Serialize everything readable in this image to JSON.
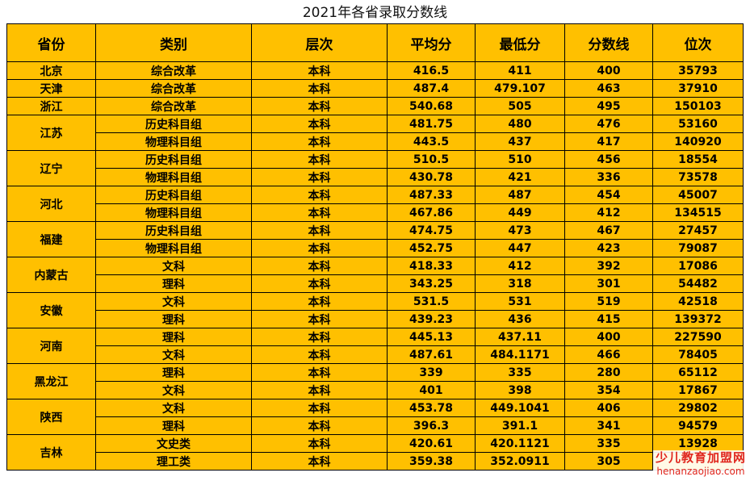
{
  "title": "2021年各省录取分数线",
  "columns": [
    "省份",
    "类别",
    "层次",
    "平均分",
    "最低分",
    "分数线",
    "位次"
  ],
  "provinces": [
    {
      "name": "北京",
      "rows": [
        {
          "category": "综合改革",
          "level": "本科",
          "avg": "416.5",
          "min": "411",
          "line": "400",
          "rank": "35793"
        }
      ]
    },
    {
      "name": "天津",
      "rows": [
        {
          "category": "综合改革",
          "level": "本科",
          "avg": "487.4",
          "min": "479.107",
          "line": "463",
          "rank": "37910"
        }
      ]
    },
    {
      "name": "浙江",
      "rows": [
        {
          "category": "综合改革",
          "level": "本科",
          "avg": "540.68",
          "min": "505",
          "line": "495",
          "rank": "150103"
        }
      ]
    },
    {
      "name": "江苏",
      "rows": [
        {
          "category": "历史科目组",
          "level": "本科",
          "avg": "481.75",
          "min": "480",
          "line": "476",
          "rank": "53160"
        },
        {
          "category": "物理科目组",
          "level": "本科",
          "avg": "443.5",
          "min": "437",
          "line": "417",
          "rank": "140920"
        }
      ]
    },
    {
      "name": "辽宁",
      "rows": [
        {
          "category": "历史科目组",
          "level": "本科",
          "avg": "510.5",
          "min": "510",
          "line": "456",
          "rank": "18554"
        },
        {
          "category": "物理科目组",
          "level": "本科",
          "avg": "430.78",
          "min": "421",
          "line": "336",
          "rank": "73578"
        }
      ]
    },
    {
      "name": "河北",
      "rows": [
        {
          "category": "历史科目组",
          "level": "本科",
          "avg": "487.33",
          "min": "487",
          "line": "454",
          "rank": "45007"
        },
        {
          "category": "物理科目组",
          "level": "本科",
          "avg": "467.86",
          "min": "449",
          "line": "412",
          "rank": "134515"
        }
      ]
    },
    {
      "name": "福建",
      "rows": [
        {
          "category": "历史科目组",
          "level": "本科",
          "avg": "474.75",
          "min": "473",
          "line": "467",
          "rank": "27457"
        },
        {
          "category": "物理科目组",
          "level": "本科",
          "avg": "452.75",
          "min": "447",
          "line": "423",
          "rank": "79087"
        }
      ]
    },
    {
      "name": "内蒙古",
      "rows": [
        {
          "category": "文科",
          "level": "本科",
          "avg": "418.33",
          "min": "412",
          "line": "392",
          "rank": "17086"
        },
        {
          "category": "理科",
          "level": "本科",
          "avg": "343.25",
          "min": "318",
          "line": "301",
          "rank": "54482"
        }
      ]
    },
    {
      "name": "安徽",
      "rows": [
        {
          "category": "文科",
          "level": "本科",
          "avg": "531.5",
          "min": "531",
          "line": "519",
          "rank": "42518"
        },
        {
          "category": "理科",
          "level": "本科",
          "avg": "439.23",
          "min": "436",
          "line": "415",
          "rank": "139372"
        }
      ]
    },
    {
      "name": "河南",
      "rows": [
        {
          "category": "理科",
          "level": "本科",
          "avg": "445.13",
          "min": "437.11",
          "line": "400",
          "rank": "227590"
        },
        {
          "category": "文科",
          "level": "本科",
          "avg": "487.61",
          "min": "484.1171",
          "line": "466",
          "rank": "78405"
        }
      ]
    },
    {
      "name": "黑龙江",
      "rows": [
        {
          "category": "理科",
          "level": "本科",
          "avg": "339",
          "min": "335",
          "line": "280",
          "rank": "65112"
        },
        {
          "category": "文科",
          "level": "本科",
          "avg": "401",
          "min": "398",
          "line": "354",
          "rank": "17867"
        }
      ]
    },
    {
      "name": "陕西",
      "rows": [
        {
          "category": "文科",
          "level": "本科",
          "avg": "453.78",
          "min": "449.1041",
          "line": "406",
          "rank": "29802"
        },
        {
          "category": "理科",
          "level": "本科",
          "avg": "396.3",
          "min": "391.1",
          "line": "341",
          "rank": "94579"
        }
      ]
    },
    {
      "name": "吉林",
      "rows": [
        {
          "category": "文史类",
          "level": "本科",
          "avg": "420.61",
          "min": "420.1121",
          "line": "335",
          "rank": "13928"
        },
        {
          "category": "理工类",
          "level": "本科",
          "avg": "359.38",
          "min": "352.0911",
          "line": "305",
          "rank": ""
        }
      ]
    }
  ],
  "watermark": {
    "text": "少儿教育加盟网",
    "url": "henanzaojiao.com"
  },
  "colors": {
    "table_fill": "#FFC000",
    "border": "#000000",
    "watermark": "#e0271e"
  }
}
